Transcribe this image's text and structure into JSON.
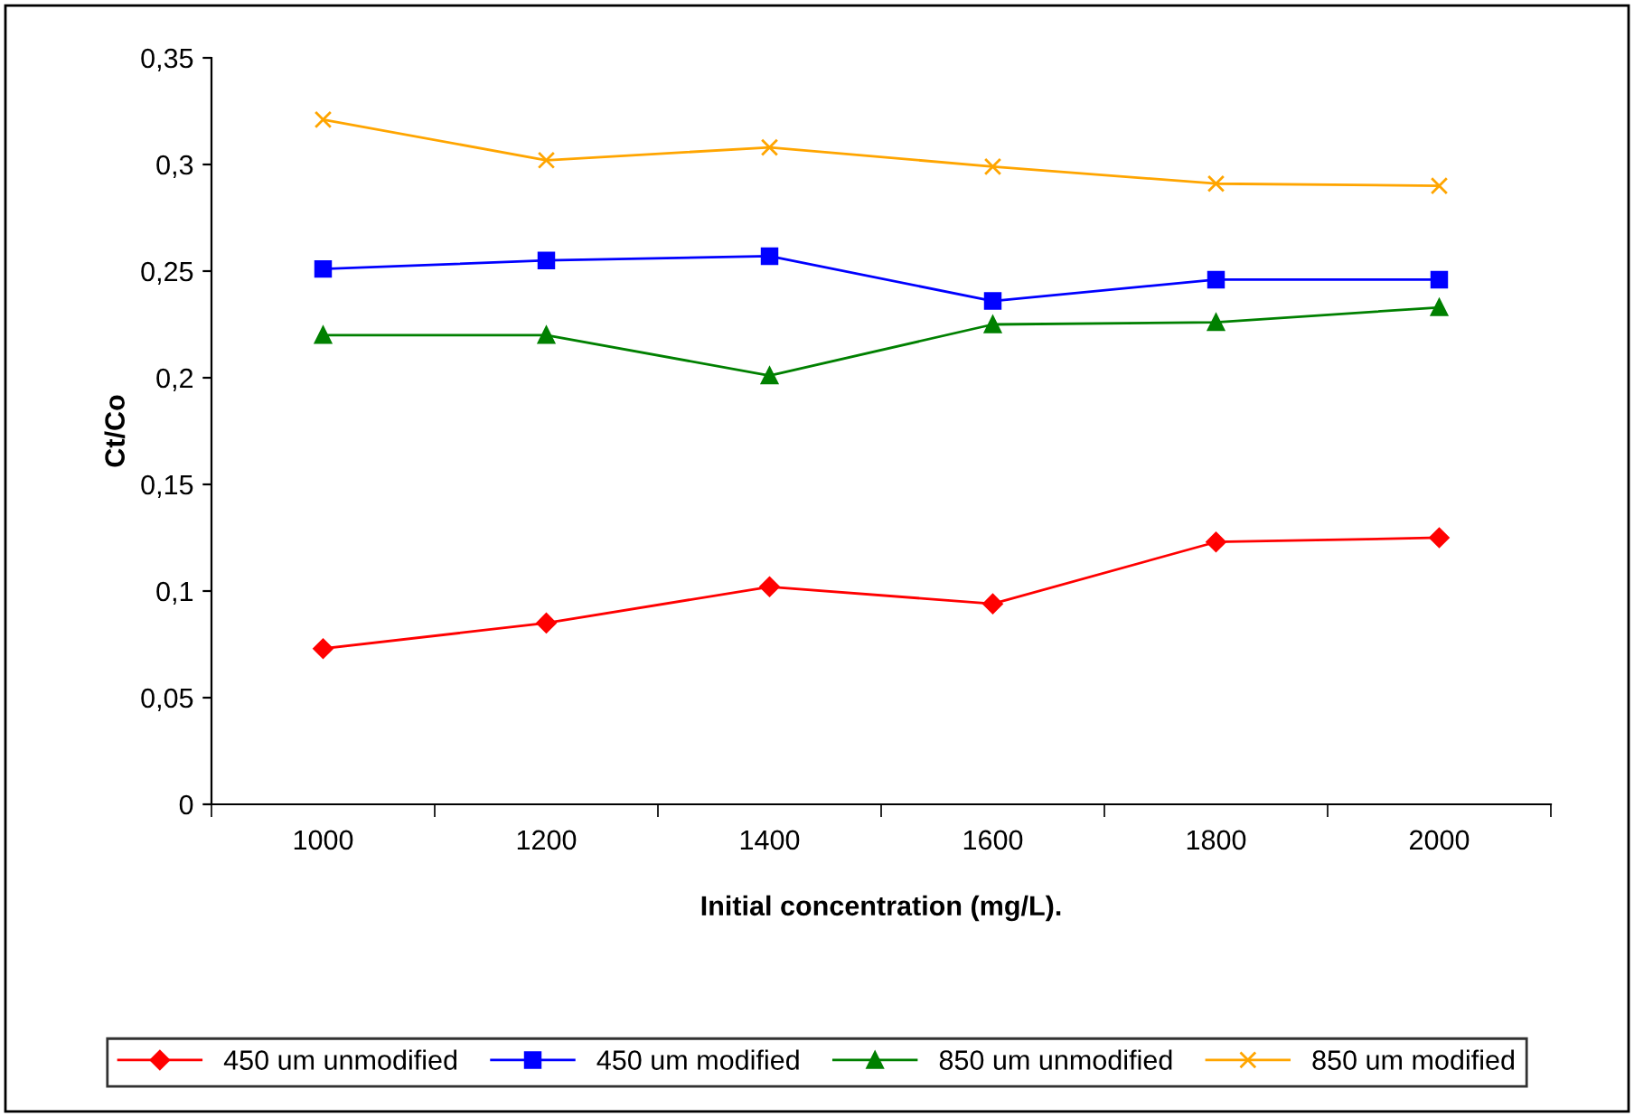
{
  "chart_data": {
    "type": "line",
    "xlabel": "Initial concentration (mg/L).",
    "ylabel": "Ct/Co",
    "categories": [
      "1000",
      "1200",
      "1400",
      "1600",
      "1800",
      "2000"
    ],
    "series": [
      {
        "name": "450 um unmodified",
        "color": "#ff0000",
        "marker": "diamond",
        "values": [
          0.073,
          0.085,
          0.102,
          0.094,
          0.123,
          0.125
        ]
      },
      {
        "name": "450 um modified",
        "color": "#0000ff",
        "marker": "square",
        "values": [
          0.251,
          0.255,
          0.257,
          0.236,
          0.246,
          0.246
        ]
      },
      {
        "name": "850 um unmodified",
        "color": "#008000",
        "marker": "triangle",
        "values": [
          0.22,
          0.22,
          0.201,
          0.225,
          0.226,
          0.233
        ]
      },
      {
        "name": "850 um modified",
        "color": "#ffa500",
        "marker": "cross",
        "values": [
          0.321,
          0.302,
          0.308,
          0.299,
          0.291,
          0.29
        ]
      }
    ],
    "ylim": [
      0,
      0.35
    ],
    "yticks": [
      0,
      {
        "value": 0.05,
        "label": "0,05"
      },
      {
        "value": 0.1,
        "label": "0,1"
      },
      {
        "value": 0.15,
        "label": "0,15"
      },
      {
        "value": 0.2,
        "label": "0,2"
      },
      {
        "value": 0.25,
        "label": "0,25"
      },
      {
        "value": 0.3,
        "label": "0,3"
      },
      {
        "value": 0.35,
        "label": "0,35"
      }
    ],
    "grid": false,
    "legend": "bottom",
    "line_style": "solid"
  }
}
